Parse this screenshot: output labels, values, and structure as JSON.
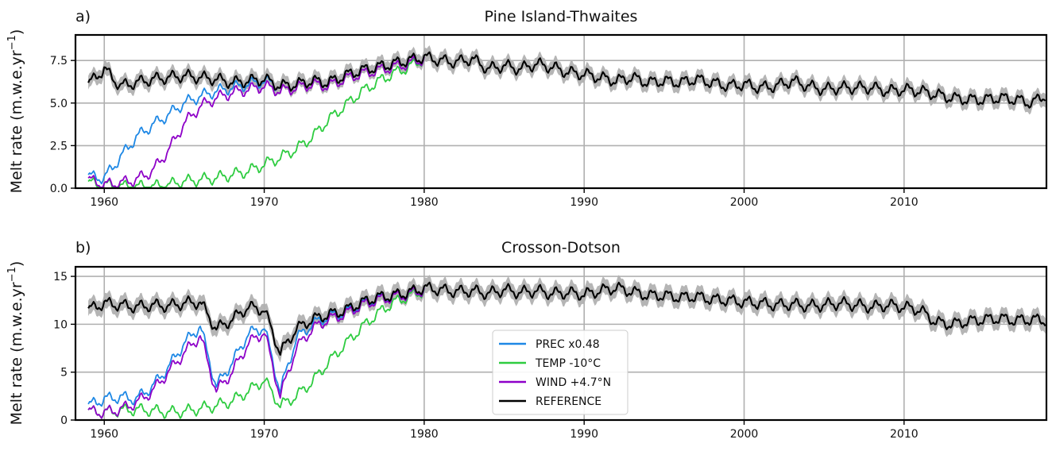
{
  "colors": {
    "PREC x0.48": "#1e88e5",
    "TEMP -10°C": "#2ecc40",
    "WIND +4.7°N": "#8e00c8",
    "REFERENCE": "#000000",
    "band": "#a8a8a8",
    "grid": "#b0b0b0"
  },
  "legend": {
    "entries": [
      "PREC x0.48",
      "TEMP -10°C",
      "WIND +4.7°N",
      "REFERENCE"
    ],
    "placement": "lower-center of panel b"
  },
  "chart_data": [
    {
      "type": "line",
      "panel_label": "a)",
      "title": "Pine Island-Thwaites",
      "ylabel": "Melt rate (m.w.e.yr",
      "ylabel_exp": "−1",
      "ylabel_close": ")",
      "xlim": [
        1958.2,
        2018.9
      ],
      "ylim": [
        0,
        9.0
      ],
      "xticks": [
        1960,
        1970,
        1980,
        1990,
        2000,
        2010
      ],
      "yticks": [
        0.0,
        2.5,
        5.0,
        7.5
      ],
      "ytick_labels": [
        "0.0",
        "2.5",
        "5.0",
        "7.5"
      ],
      "grid": true,
      "reference_band_halfwidth": 0.4,
      "series": [
        {
          "name": "REFERENCE",
          "x": [
            1959,
            1960,
            1961,
            1962,
            1963,
            1964,
            1965,
            1966,
            1967,
            1968,
            1969,
            1970,
            1971,
            1972,
            1973,
            1974,
            1975,
            1976,
            1977,
            1978,
            1979,
            1980,
            1981,
            1982,
            1983,
            1984,
            1985,
            1986,
            1987,
            1988,
            1989,
            1990,
            1991,
            1992,
            1993,
            1994,
            1995,
            1996,
            1997,
            1998,
            1999,
            2000,
            2001,
            2002,
            2003,
            2004,
            2005,
            2006,
            2007,
            2008,
            2009,
            2010,
            2011,
            2012,
            2013,
            2014,
            2015,
            2016,
            2017,
            2018,
            2018.9
          ],
          "values": [
            6.1,
            7.0,
            6.0,
            6.2,
            6.4,
            6.5,
            6.6,
            6.5,
            6.4,
            6.2,
            6.3,
            6.4,
            6.0,
            6.1,
            6.3,
            6.2,
            6.6,
            6.9,
            7.1,
            7.3,
            7.5,
            7.7,
            7.5,
            7.4,
            7.6,
            7.0,
            7.2,
            7.0,
            7.3,
            7.1,
            6.8,
            6.7,
            6.5,
            6.3,
            6.5,
            6.2,
            6.3,
            6.2,
            6.4,
            6.2,
            6.0,
            6.1,
            5.9,
            6.0,
            6.3,
            6.0,
            5.8,
            5.9,
            5.9,
            5.9,
            5.7,
            5.8,
            5.7,
            5.5,
            5.3,
            5.2,
            5.2,
            5.3,
            5.2,
            5.0,
            5.5
          ]
        },
        {
          "name": "PREC x0.48",
          "x": [
            1959,
            1960,
            1961,
            1962,
            1963,
            1964,
            1965,
            1966,
            1967,
            1968,
            1969,
            1970,
            1971,
            1972,
            1973,
            1974,
            1975,
            1976,
            1977,
            1978,
            1979,
            1980
          ],
          "values": [
            0.7,
            0.6,
            1.8,
            3.0,
            3.7,
            4.3,
            5.0,
            5.4,
            5.7,
            5.9,
            6.1,
            6.3,
            6.0,
            6.1,
            6.3,
            6.2,
            6.6,
            6.9,
            7.1,
            7.3,
            7.5,
            7.7
          ]
        },
        {
          "name": "WIND +4.7°N",
          "x": [
            1959,
            1960,
            1961,
            1962,
            1963,
            1964,
            1965,
            1966,
            1967,
            1968,
            1969,
            1970,
            1971,
            1972,
            1973,
            1974,
            1975,
            1976,
            1977,
            1978,
            1979,
            1980
          ],
          "values": [
            0.5,
            0.2,
            0.3,
            0.5,
            1.0,
            2.2,
            3.8,
            4.8,
            5.3,
            5.6,
            5.8,
            6.0,
            5.7,
            5.9,
            6.1,
            6.0,
            6.4,
            6.7,
            6.9,
            7.1,
            7.3,
            7.6
          ]
        },
        {
          "name": "TEMP -10°C",
          "x": [
            1959,
            1960,
            1961,
            1962,
            1963,
            1964,
            1965,
            1966,
            1967,
            1968,
            1969,
            1970,
            1971,
            1972,
            1973,
            1974,
            1975,
            1976,
            1977,
            1978,
            1979,
            1980
          ],
          "values": [
            0.3,
            0.2,
            0.1,
            0.1,
            0.1,
            0.2,
            0.4,
            0.5,
            0.6,
            0.8,
            1.0,
            1.4,
            1.8,
            2.3,
            3.0,
            4.0,
            4.8,
            5.6,
            6.2,
            6.7,
            7.1,
            7.6
          ]
        }
      ]
    },
    {
      "type": "line",
      "panel_label": "b)",
      "title": "Crosson-Dotson",
      "ylabel": "Melt rate (m.w.e.yr",
      "ylabel_exp": "−1",
      "ylabel_close": ")",
      "xlim": [
        1958.2,
        2018.9
      ],
      "ylim": [
        0,
        16.0
      ],
      "xticks": [
        1960,
        1970,
        1980,
        1990,
        2000,
        2010
      ],
      "yticks": [
        0,
        5,
        10,
        15
      ],
      "ytick_labels": [
        "0",
        "5",
        "10",
        "15"
      ],
      "grid": true,
      "reference_band_halfwidth": 0.8,
      "series": [
        {
          "name": "REFERENCE",
          "x": [
            1959,
            1960,
            1961,
            1962,
            1963,
            1964,
            1965,
            1966,
            1967,
            1968,
            1969,
            1970,
            1971,
            1972,
            1973,
            1974,
            1975,
            1976,
            1977,
            1978,
            1979,
            1980,
            1981,
            1982,
            1983,
            1984,
            1985,
            1986,
            1987,
            1988,
            1989,
            1990,
            1991,
            1992,
            1993,
            1994,
            1995,
            1996,
            1997,
            1998,
            1999,
            2000,
            2001,
            2002,
            2003,
            2004,
            2005,
            2006,
            2007,
            2008,
            2009,
            2010,
            2011,
            2012,
            2013,
            2014,
            2015,
            2016,
            2017,
            2018,
            2018.9
          ],
          "values": [
            11.5,
            12.2,
            12.0,
            11.8,
            12.0,
            11.9,
            12.2,
            12.3,
            9.5,
            10.5,
            11.8,
            11.5,
            7.0,
            9.5,
            10.5,
            11.0,
            11.4,
            12.2,
            12.8,
            13.0,
            13.3,
            13.8,
            13.6,
            13.4,
            13.5,
            13.2,
            13.6,
            13.3,
            13.5,
            13.2,
            13.3,
            13.1,
            13.5,
            13.8,
            13.4,
            13.0,
            13.0,
            12.8,
            12.9,
            12.6,
            12.5,
            12.3,
            12.2,
            12.0,
            12.1,
            11.9,
            12.0,
            12.2,
            12.0,
            11.8,
            12.0,
            11.8,
            11.5,
            10.2,
            10.0,
            10.3,
            10.5,
            10.6,
            10.4,
            10.5,
            10.4
          ]
        },
        {
          "name": "PREC x0.48",
          "x": [
            1959,
            1960,
            1961,
            1962,
            1963,
            1964,
            1965,
            1966,
            1967,
            1968,
            1969,
            1970,
            1971,
            1972,
            1973,
            1974,
            1975,
            1976,
            1977,
            1978,
            1979,
            1980
          ],
          "values": [
            1.5,
            2.2,
            2.4,
            2.2,
            3.5,
            5.5,
            8.0,
            9.8,
            3.5,
            6.0,
            9.0,
            9.7,
            3.0,
            8.5,
            10.0,
            10.8,
            11.2,
            12.0,
            12.6,
            12.9,
            13.2,
            13.7
          ]
        },
        {
          "name": "WIND +4.7°N",
          "x": [
            1959,
            1960,
            1961,
            1962,
            1963,
            1964,
            1965,
            1966,
            1967,
            1968,
            1969,
            1970,
            1971,
            1972,
            1973,
            1974,
            1975,
            1976,
            1977,
            1978,
            1979,
            1980
          ],
          "values": [
            0.9,
            0.8,
            1.1,
            1.8,
            3.0,
            5.0,
            7.0,
            8.8,
            3.0,
            5.0,
            8.0,
            9.2,
            2.5,
            7.5,
            9.5,
            10.5,
            11.0,
            11.9,
            12.5,
            12.8,
            13.1,
            13.6
          ]
        },
        {
          "name": "TEMP -10°C",
          "x": [
            1959,
            1960,
            1961,
            1962,
            1963,
            1964,
            1965,
            1966,
            1967,
            1968,
            1969,
            1970,
            1971,
            1972,
            1973,
            1974,
            1975,
            1976,
            1977,
            1978,
            1979,
            1980
          ],
          "values": [
            0.9,
            0.8,
            1.0,
            1.1,
            1.0,
            0.8,
            0.9,
            1.2,
            1.5,
            2.0,
            3.0,
            4.2,
            1.5,
            2.5,
            4.0,
            6.0,
            7.8,
            9.5,
            11.0,
            12.2,
            12.9,
            13.5
          ]
        }
      ]
    }
  ]
}
